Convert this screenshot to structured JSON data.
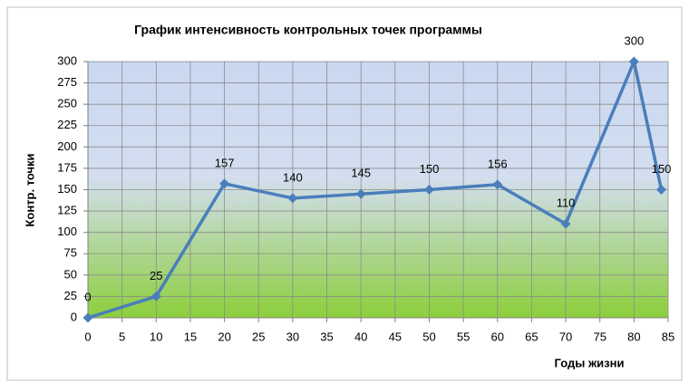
{
  "chart_data": {
    "type": "line",
    "title": "График интенсивность контрольных точек  программы",
    "x_label": "Годы жизни",
    "y_label": "Контр. точки",
    "x": [
      0,
      10,
      20,
      30,
      40,
      50,
      60,
      70,
      80,
      84
    ],
    "series": [
      {
        "name": "Контр. точки",
        "color": "#4a7ebb",
        "values": [
          0,
          25,
          157,
          140,
          145,
          150,
          156,
          110,
          300,
          150
        ]
      }
    ],
    "xlim": [
      0,
      85
    ],
    "xticks": [
      0,
      5,
      10,
      15,
      20,
      25,
      30,
      35,
      40,
      45,
      50,
      55,
      60,
      65,
      70,
      75,
      80,
      85
    ],
    "ylim": [
      0,
      300
    ],
    "yticks": [
      0,
      25,
      50,
      75,
      100,
      125,
      150,
      175,
      200,
      225,
      250,
      275,
      300
    ],
    "grid": true
  }
}
